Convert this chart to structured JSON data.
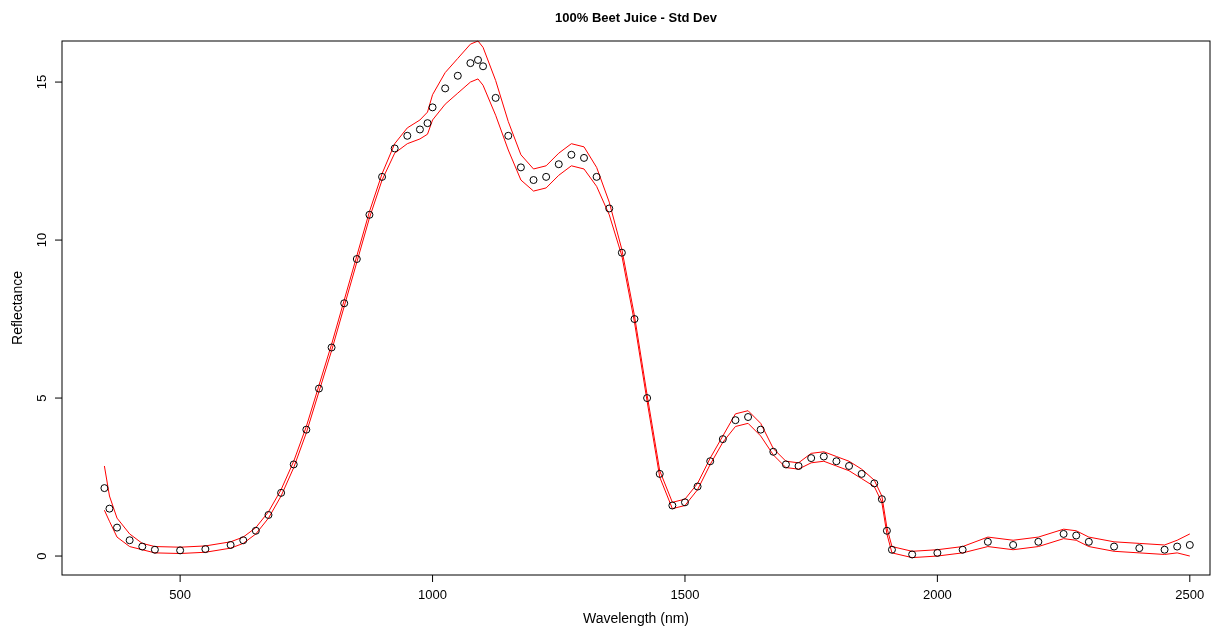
{
  "chart_data": {
    "type": "scatter",
    "title": "100% Beet Juice - Std Dev",
    "xlabel": "Wavelength (nm)",
    "ylabel": "Reflectance",
    "x": [
      350,
      360,
      375,
      400,
      425,
      450,
      500,
      550,
      600,
      625,
      650,
      675,
      700,
      725,
      750,
      775,
      800,
      825,
      850,
      875,
      900,
      925,
      950,
      975,
      990,
      1000,
      1025,
      1050,
      1075,
      1090,
      1100,
      1125,
      1150,
      1175,
      1200,
      1225,
      1250,
      1275,
      1300,
      1325,
      1350,
      1375,
      1400,
      1425,
      1450,
      1475,
      1500,
      1525,
      1550,
      1575,
      1600,
      1625,
      1650,
      1675,
      1700,
      1725,
      1750,
      1775,
      1800,
      1825,
      1850,
      1875,
      1890,
      1900,
      1910,
      1950,
      2000,
      2050,
      2100,
      2150,
      2200,
      2250,
      2275,
      2300,
      2350,
      2400,
      2450,
      2475,
      2500
    ],
    "series": [
      {
        "type": "line",
        "marker": "none",
        "color": "#ff0000",
        "values": [
          2.85,
          1.9,
          1.2,
          0.7,
          0.4,
          0.3,
          0.28,
          0.32,
          0.45,
          0.6,
          0.9,
          1.4,
          2.1,
          3.0,
          4.1,
          5.4,
          6.7,
          8.1,
          9.5,
          10.9,
          12.1,
          13.05,
          13.55,
          13.8,
          14.05,
          14.6,
          15.3,
          15.75,
          16.2,
          16.3,
          16.1,
          15.05,
          13.75,
          12.7,
          12.25,
          12.35,
          12.75,
          13.05,
          12.95,
          12.3,
          11.2,
          9.7,
          7.6,
          5.1,
          2.7,
          1.7,
          1.8,
          2.3,
          3.1,
          3.8,
          4.5,
          4.6,
          4.2,
          3.4,
          3.0,
          2.95,
          3.25,
          3.3,
          3.15,
          3.0,
          2.75,
          2.4,
          1.9,
          0.9,
          0.3,
          0.15,
          0.2,
          0.3,
          0.6,
          0.5,
          0.6,
          0.85,
          0.8,
          0.6,
          0.45,
          0.4,
          0.35,
          0.5,
          0.7
        ]
      },
      {
        "type": "line",
        "marker": "none",
        "color": "#ff0000",
        "values": [
          1.45,
          1.1,
          0.6,
          0.3,
          0.2,
          0.1,
          0.08,
          0.12,
          0.25,
          0.4,
          0.7,
          1.2,
          1.9,
          2.8,
          3.9,
          5.2,
          6.5,
          7.9,
          9.3,
          10.7,
          11.9,
          12.75,
          13.05,
          13.2,
          13.35,
          13.8,
          14.3,
          14.65,
          15.0,
          15.1,
          14.9,
          13.95,
          12.85,
          11.9,
          11.55,
          11.65,
          12.05,
          12.35,
          12.25,
          11.7,
          10.8,
          9.5,
          7.4,
          4.9,
          2.5,
          1.5,
          1.6,
          2.1,
          2.9,
          3.6,
          4.1,
          4.2,
          3.8,
          3.2,
          2.8,
          2.75,
          2.95,
          3.0,
          2.85,
          2.7,
          2.45,
          2.2,
          1.7,
          0.7,
          0.1,
          -0.05,
          0.0,
          0.1,
          0.3,
          0.2,
          0.3,
          0.55,
          0.5,
          0.3,
          0.15,
          0.1,
          0.05,
          0.1,
          0.0
        ]
      },
      {
        "color": "#000000",
        "values": [
          2.15,
          1.5,
          0.9,
          0.5,
          0.3,
          0.2,
          0.18,
          0.22,
          0.35,
          0.5,
          0.8,
          1.3,
          2.0,
          2.9,
          4.0,
          5.3,
          6.6,
          8.0,
          9.4,
          10.8,
          12.0,
          12.9,
          13.3,
          13.5,
          13.7,
          14.2,
          14.8,
          15.2,
          15.6,
          15.7,
          15.5,
          14.5,
          13.3,
          12.3,
          11.9,
          12.0,
          12.4,
          12.7,
          12.6,
          12.0,
          11.0,
          9.6,
          7.5,
          5.0,
          2.6,
          1.6,
          1.7,
          2.2,
          3.0,
          3.7,
          4.3,
          4.4,
          4.0,
          3.3,
          2.9,
          2.85,
          3.1,
          3.15,
          3.0,
          2.85,
          2.6,
          2.3,
          1.8,
          0.8,
          0.2,
          0.05,
          0.1,
          0.2,
          0.45,
          0.35,
          0.45,
          0.7,
          0.65,
          0.45,
          0.3,
          0.25,
          0.2,
          0.3,
          0.35
        ]
      }
    ],
    "xlim": [
      266,
      2540
    ],
    "ylim": [
      -0.6,
      16.3
    ],
    "xticks": [
      500,
      1000,
      1500,
      2000,
      2500
    ],
    "yticks": [
      0,
      5,
      10,
      15
    ],
    "marker": "circle",
    "line_style": "solid"
  }
}
